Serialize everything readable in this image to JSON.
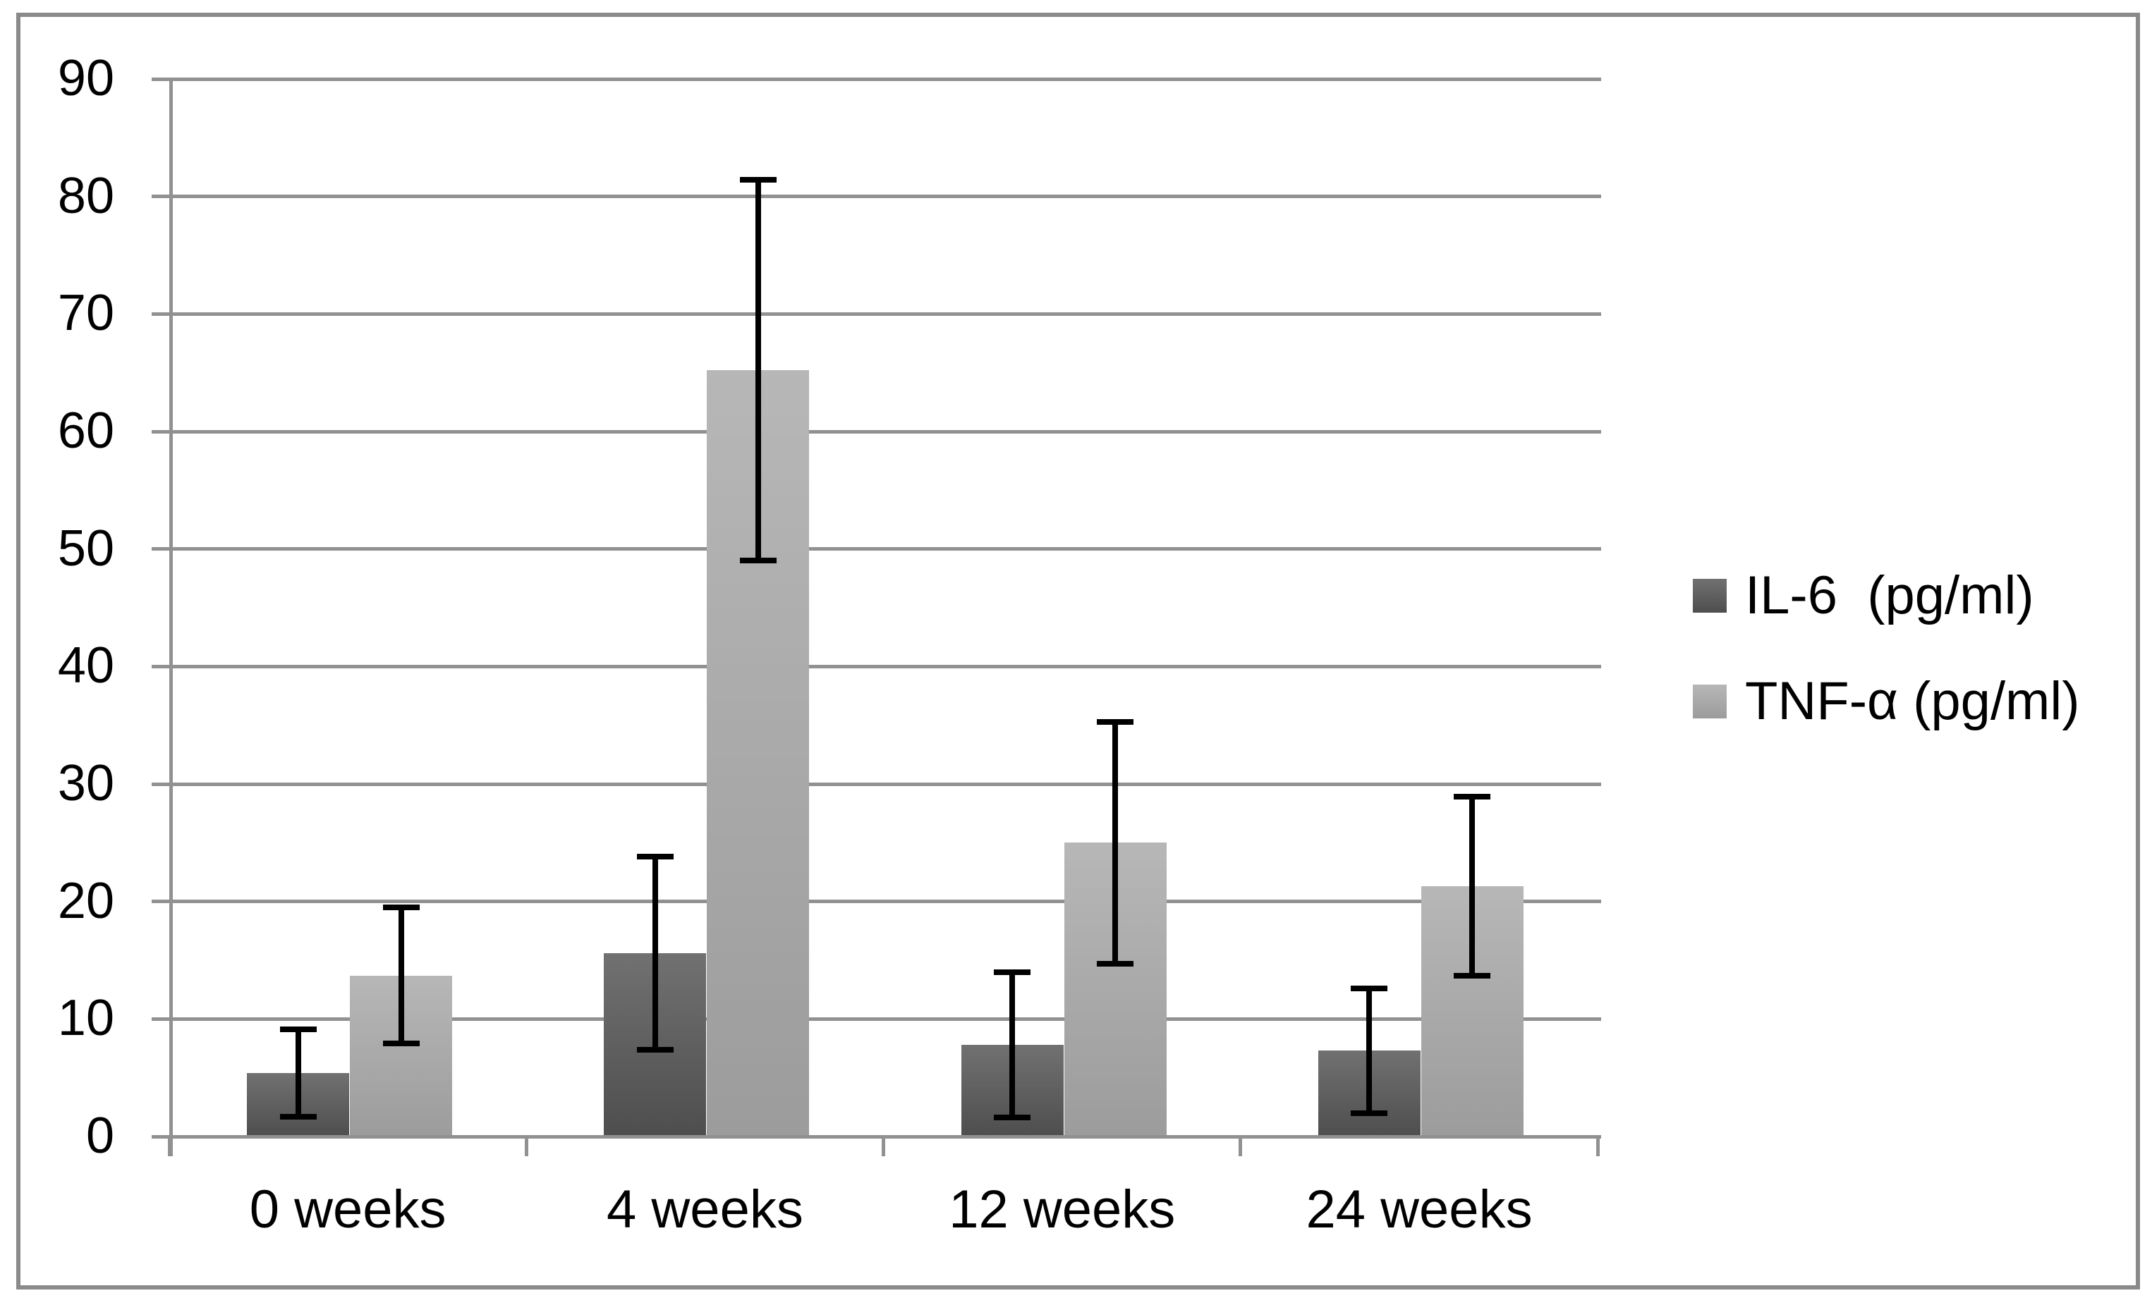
{
  "frame": {
    "border_color": "#8a8a8a",
    "background_color": "#ffffff"
  },
  "chart_data": {
    "type": "bar",
    "title": "",
    "xlabel": "",
    "ylabel": "",
    "categories": [
      "0 weeks",
      "4 weeks",
      "12 weeks",
      "24 weeks"
    ],
    "series": [
      {
        "name": "IL-6  (pg/ml)",
        "values": [
          5.4,
          15.6,
          7.8,
          7.3
        ],
        "error": [
          3.7,
          8.2,
          6.2,
          5.3
        ],
        "color_top": "#717171",
        "color_bottom": "#4e4e4e"
      },
      {
        "name": "TNF-α (pg/ml)",
        "values": [
          13.7,
          65.2,
          25.0,
          21.3
        ],
        "error": [
          5.8,
          16.2,
          10.3,
          7.6
        ],
        "color_top": "#b7b7b7",
        "color_bottom": "#9c9c9c"
      }
    ],
    "ylim": [
      0,
      90
    ],
    "ytick_step": 10,
    "ytick_labels": [
      "0",
      "10",
      "20",
      "30",
      "40",
      "50",
      "60",
      "70",
      "80",
      "90"
    ],
    "grid": true,
    "gridline_color": "#919191",
    "error_bar_color": "#000000",
    "legend_position": "right",
    "legend_entries": [
      "IL-6  (pg/ml)",
      "TNF-α (pg/ml)"
    ]
  }
}
